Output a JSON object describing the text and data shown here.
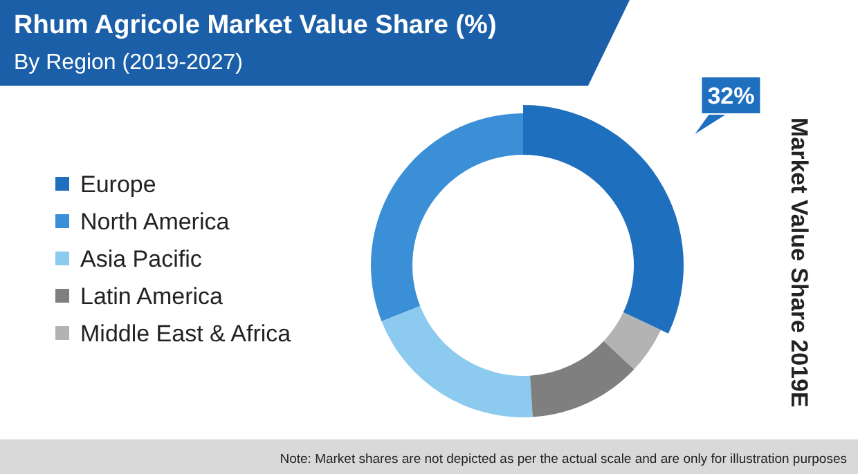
{
  "chart_data": {
    "type": "donut",
    "title": "Rhum Agricole Market Value Share (%)",
    "subtitle": "By Region (2019-2027)",
    "categories": [
      "Europe",
      "North America",
      "Asia Pacific",
      "Latin America",
      "Middle East & Africa"
    ],
    "values": [
      32,
      31,
      20,
      12,
      5
    ],
    "colors": [
      "#1f6fbf",
      "#3a8fd6",
      "#8ccaf0",
      "#7f7f7f",
      "#b3b3b3"
    ],
    "value_labels": [
      "32%",
      null,
      null,
      null,
      null
    ],
    "legend": "left",
    "annotations": [
      "Market Value Share 2019E",
      "Note: Market shares are not depicted as per the actual scale and are only for illustration purposes"
    ]
  }
}
